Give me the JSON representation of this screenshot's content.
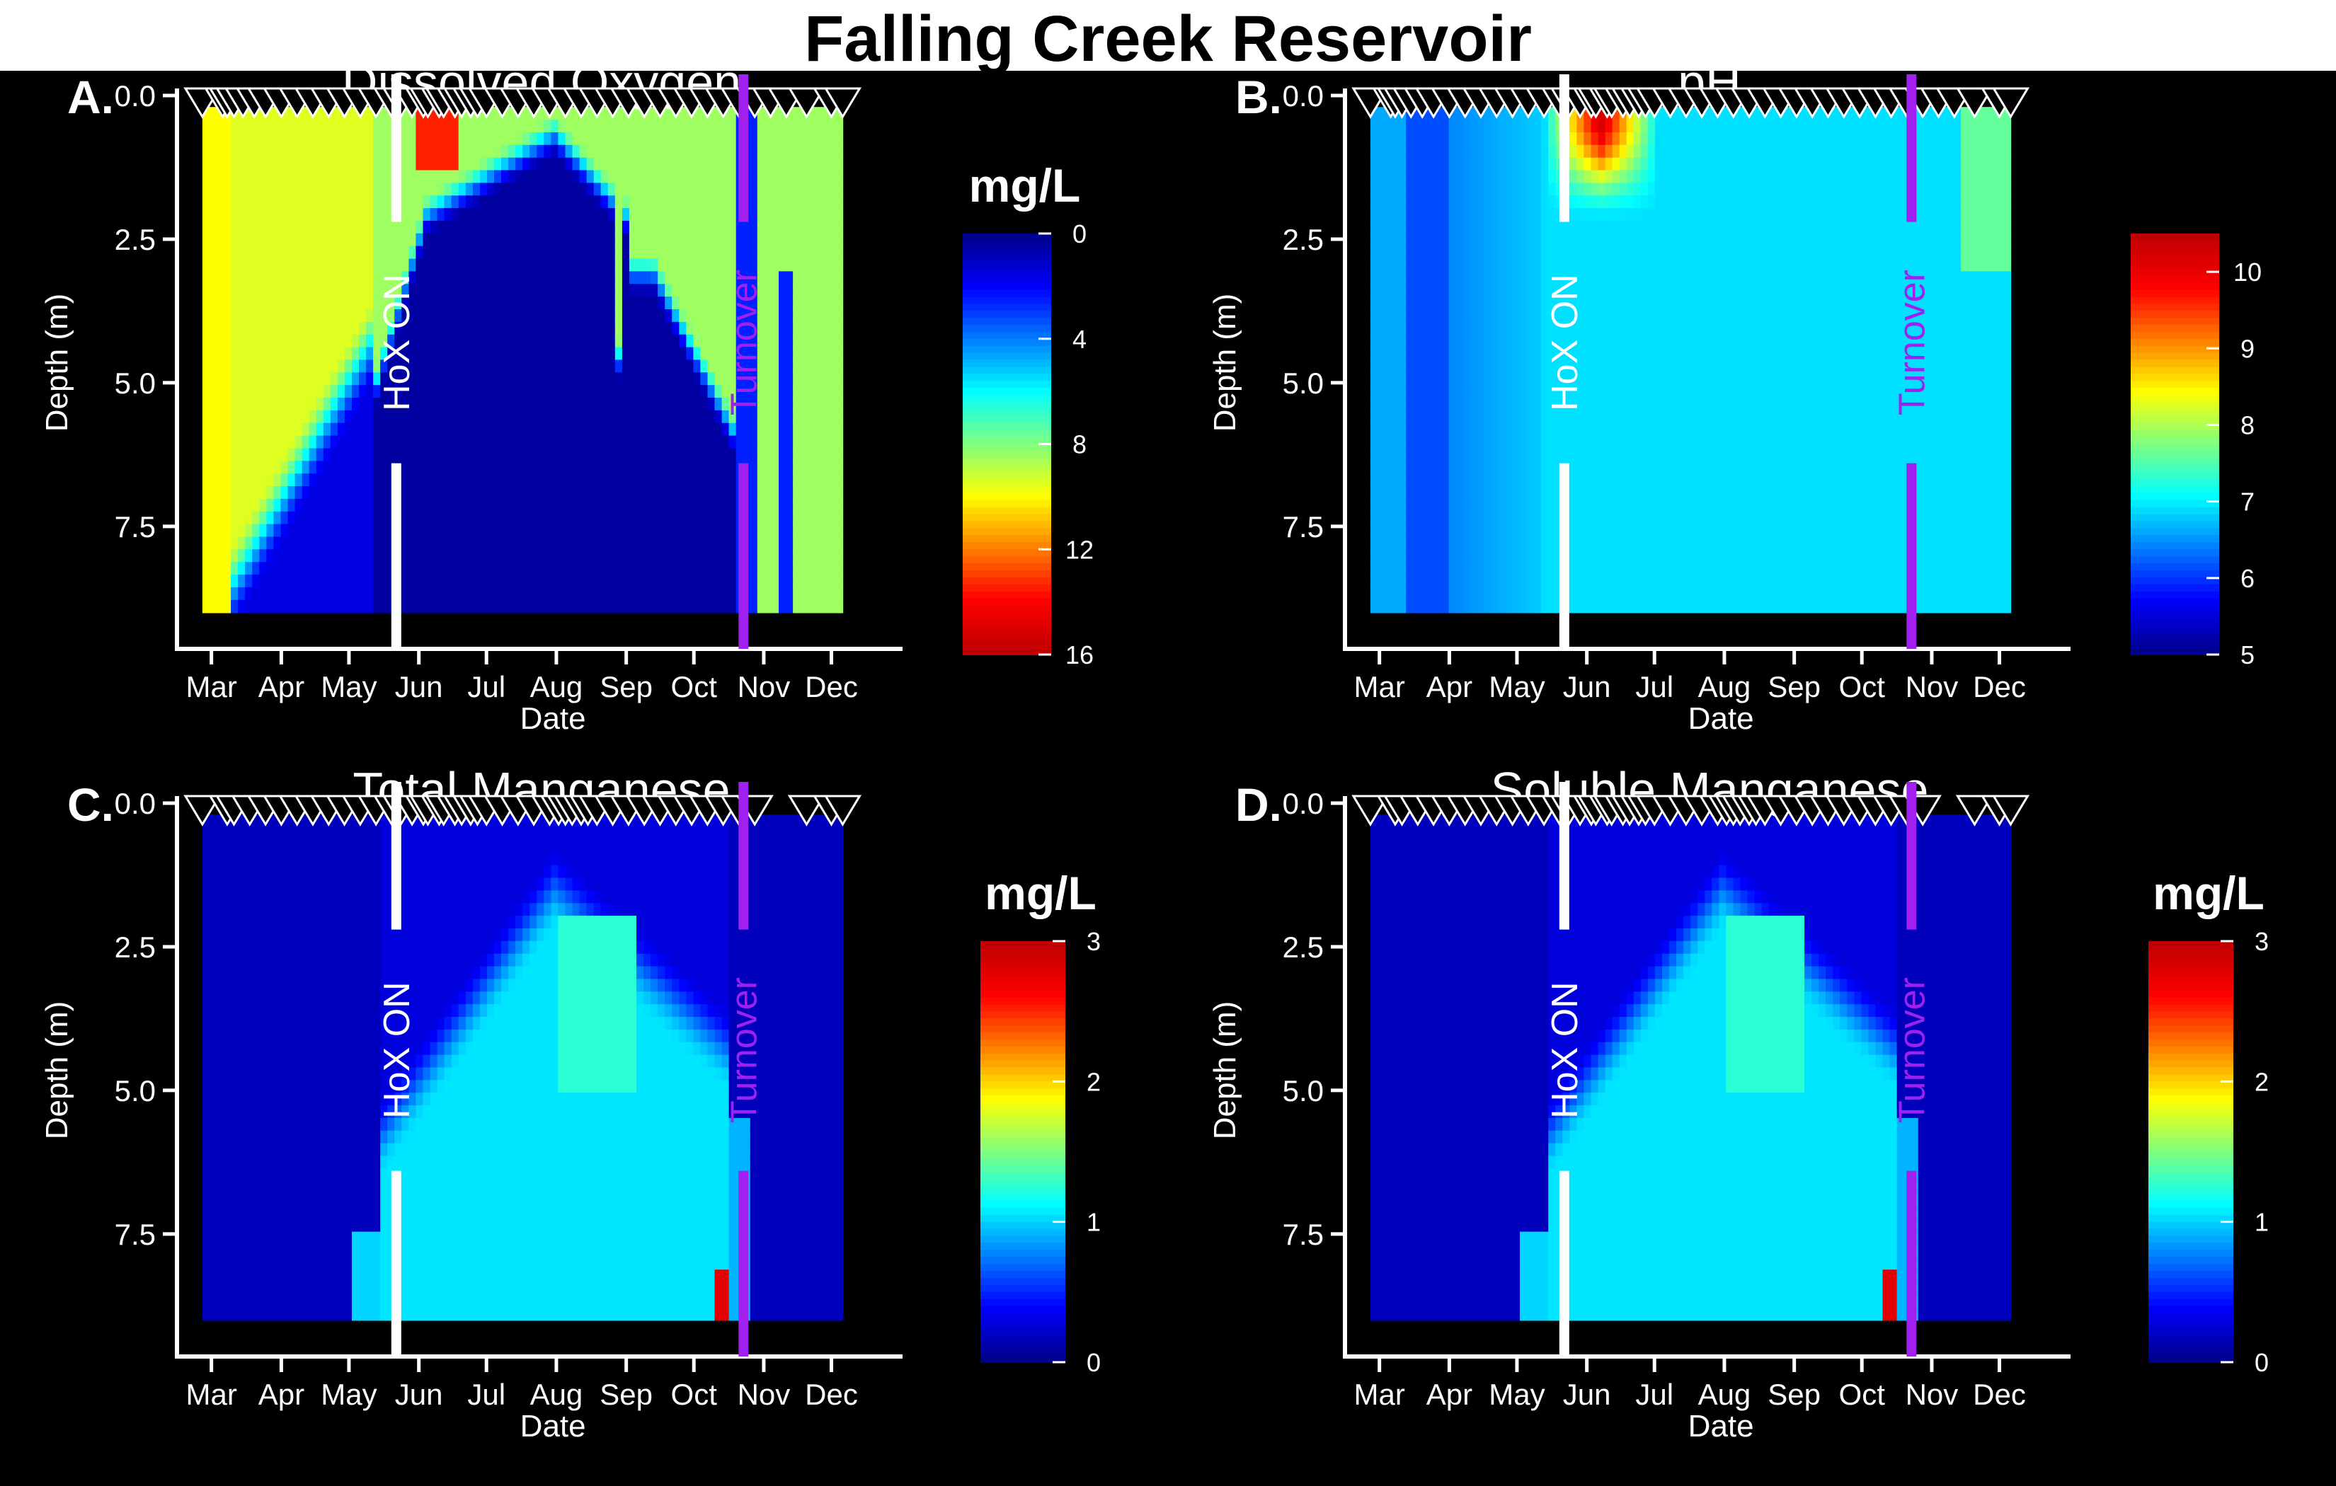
{
  "figure": {
    "title": "Falling Creek Reservoir"
  },
  "colors": {
    "colormap": [
      "#00008f",
      "#0000ff",
      "#0080ff",
      "#00ffff",
      "#80ff80",
      "#ffff00",
      "#ff8000",
      "#ff0000",
      "#c00000"
    ],
    "hox_line": "#ffffff",
    "turnover_line": "#a020f0",
    "background": "#000000",
    "axes": "#ffffff"
  },
  "chart_data": [
    {
      "type": "heatmap",
      "panel_label": "A.",
      "title": "Dissolved Oxygen",
      "units": "mg/L",
      "xlabel": "Date",
      "ylabel": "Depth (m)",
      "x_ticks": [
        "Mar",
        "Apr",
        "May",
        "Jun",
        "Jul",
        "Aug",
        "Sep",
        "Oct",
        "Nov",
        "Dec"
      ],
      "y_ticks": [
        "0.0",
        "2.5",
        "5.0",
        "7.5"
      ],
      "y_range": [
        0,
        9.3
      ],
      "y_reversed": true,
      "colorbar_ticks": [
        "0",
        "4",
        "8",
        "12",
        "16"
      ],
      "colorbar_range": [
        0,
        16
      ],
      "colorbar_reversed": true,
      "sampling_dates": [
        "2019-02-25",
        "2019-03-06",
        "2019-03-08",
        "2019-03-11",
        "2019-03-15",
        "2019-03-20",
        "2019-03-25",
        "2019-04-01",
        "2019-04-08",
        "2019-04-15",
        "2019-04-22",
        "2019-04-29",
        "2019-05-06",
        "2019-05-13",
        "2019-05-20",
        "2019-05-24",
        "2019-05-29",
        "2019-06-03",
        "2019-06-05",
        "2019-06-10",
        "2019-06-12",
        "2019-06-17",
        "2019-06-20",
        "2019-06-24",
        "2019-06-27",
        "2019-07-01",
        "2019-07-08",
        "2019-07-15",
        "2019-07-22",
        "2019-07-29",
        "2019-08-05",
        "2019-08-12",
        "2019-08-19",
        "2019-08-26",
        "2019-09-02",
        "2019-09-09",
        "2019-09-16",
        "2019-09-23",
        "2019-09-30",
        "2019-10-07",
        "2019-10-14",
        "2019-10-21",
        "2019-10-28",
        "2019-11-04",
        "2019-11-11",
        "2019-11-20",
        "2019-12-01",
        "2019-12-06"
      ],
      "events": [
        {
          "label": "HoX ON",
          "date": "2019-05-22",
          "color": "#ffffff"
        },
        {
          "label": "Turnover",
          "date": "2019-10-23",
          "color": "#a020f0"
        }
      ]
    },
    {
      "type": "heatmap",
      "panel_label": "B.",
      "title": "pH",
      "units": "",
      "xlabel": "Date",
      "ylabel": "Depth (m)",
      "x_ticks": [
        "Mar",
        "Apr",
        "May",
        "Jun",
        "Jul",
        "Aug",
        "Sep",
        "Oct",
        "Nov",
        "Dec"
      ],
      "y_ticks": [
        "0.0",
        "2.5",
        "5.0",
        "7.5"
      ],
      "y_range": [
        0,
        9.3
      ],
      "y_reversed": true,
      "colorbar_ticks": [
        "5",
        "6",
        "7",
        "8",
        "9",
        "10"
      ],
      "colorbar_range": [
        5,
        10.5
      ],
      "colorbar_reversed": false,
      "sampling_dates": [
        "2019-02-25",
        "2019-03-06",
        "2019-03-08",
        "2019-03-11",
        "2019-03-15",
        "2019-03-20",
        "2019-03-25",
        "2019-04-01",
        "2019-04-08",
        "2019-04-15",
        "2019-04-22",
        "2019-04-29",
        "2019-05-06",
        "2019-05-13",
        "2019-05-20",
        "2019-05-24",
        "2019-05-29",
        "2019-06-03",
        "2019-06-05",
        "2019-06-10",
        "2019-06-12",
        "2019-06-17",
        "2019-06-20",
        "2019-06-24",
        "2019-06-27",
        "2019-07-01",
        "2019-07-08",
        "2019-07-15",
        "2019-07-22",
        "2019-07-29",
        "2019-08-05",
        "2019-08-12",
        "2019-08-19",
        "2019-08-26",
        "2019-09-02",
        "2019-09-09",
        "2019-09-16",
        "2019-09-23",
        "2019-09-30",
        "2019-10-07",
        "2019-10-14",
        "2019-10-21",
        "2019-10-28",
        "2019-11-04",
        "2019-11-11",
        "2019-11-20",
        "2019-12-01",
        "2019-12-06"
      ],
      "events": [
        {
          "label": "HoX ON",
          "date": "2019-05-22",
          "color": "#ffffff"
        },
        {
          "label": "Turnover",
          "date": "2019-10-23",
          "color": "#a020f0"
        }
      ]
    },
    {
      "type": "heatmap",
      "panel_label": "C.",
      "title": "Total Manganese",
      "units": "mg/L",
      "xlabel": "Date",
      "ylabel": "Depth (m)",
      "x_ticks": [
        "Mar",
        "Apr",
        "May",
        "Jun",
        "Jul",
        "Aug",
        "Sep",
        "Oct",
        "Nov",
        "Dec"
      ],
      "y_ticks": [
        "0.0",
        "2.5",
        "5.0",
        "7.5"
      ],
      "y_range": [
        0,
        9.3
      ],
      "y_reversed": true,
      "colorbar_ticks": [
        "0",
        "1",
        "2",
        "3"
      ],
      "colorbar_range": [
        0,
        3
      ],
      "colorbar_reversed": false,
      "sampling_dates": [
        "2019-02-25",
        "2019-03-08",
        "2019-03-11",
        "2019-03-18",
        "2019-03-25",
        "2019-04-01",
        "2019-04-08",
        "2019-04-15",
        "2019-04-22",
        "2019-04-29",
        "2019-05-06",
        "2019-05-13",
        "2019-05-20",
        "2019-05-24",
        "2019-05-29",
        "2019-06-03",
        "2019-06-05",
        "2019-06-10",
        "2019-06-12",
        "2019-06-17",
        "2019-06-20",
        "2019-06-24",
        "2019-06-27",
        "2019-07-01",
        "2019-07-08",
        "2019-07-15",
        "2019-07-22",
        "2019-07-29",
        "2019-08-02",
        "2019-08-05",
        "2019-08-08",
        "2019-08-12",
        "2019-08-15",
        "2019-08-19",
        "2019-08-26",
        "2019-09-02",
        "2019-09-09",
        "2019-09-16",
        "2019-09-23",
        "2019-09-30",
        "2019-10-07",
        "2019-10-14",
        "2019-10-21",
        "2019-10-28",
        "2019-11-20",
        "2019-12-01",
        "2019-12-06"
      ],
      "events": [
        {
          "label": "HoX ON",
          "date": "2019-05-22",
          "color": "#ffffff"
        },
        {
          "label": "Turnover",
          "date": "2019-10-23",
          "color": "#a020f0"
        }
      ]
    },
    {
      "type": "heatmap",
      "panel_label": "D.",
      "title": "Soluble Manganese",
      "units": "mg/L",
      "xlabel": "Date",
      "ylabel": "Depth (m)",
      "x_ticks": [
        "Mar",
        "Apr",
        "May",
        "Jun",
        "Jul",
        "Aug",
        "Sep",
        "Oct",
        "Nov",
        "Dec"
      ],
      "y_ticks": [
        "0.0",
        "2.5",
        "5.0",
        "7.5"
      ],
      "y_range": [
        0,
        9.3
      ],
      "y_reversed": true,
      "colorbar_ticks": [
        "0",
        "1",
        "2",
        "3"
      ],
      "colorbar_range": [
        0,
        3
      ],
      "colorbar_reversed": false,
      "sampling_dates": [
        "2019-02-25",
        "2019-03-08",
        "2019-03-11",
        "2019-03-18",
        "2019-03-25",
        "2019-04-01",
        "2019-04-08",
        "2019-04-15",
        "2019-04-22",
        "2019-04-29",
        "2019-05-06",
        "2019-05-13",
        "2019-05-20",
        "2019-05-24",
        "2019-05-29",
        "2019-06-03",
        "2019-06-05",
        "2019-06-10",
        "2019-06-12",
        "2019-06-17",
        "2019-06-20",
        "2019-06-24",
        "2019-06-27",
        "2019-07-01",
        "2019-07-08",
        "2019-07-15",
        "2019-07-22",
        "2019-07-29",
        "2019-08-02",
        "2019-08-05",
        "2019-08-08",
        "2019-08-12",
        "2019-08-15",
        "2019-08-19",
        "2019-08-26",
        "2019-09-02",
        "2019-09-09",
        "2019-09-16",
        "2019-09-23",
        "2019-09-30",
        "2019-10-07",
        "2019-10-14",
        "2019-10-21",
        "2019-10-28",
        "2019-11-20",
        "2019-12-01",
        "2019-12-06"
      ],
      "events": [
        {
          "label": "HoX ON",
          "date": "2019-05-22",
          "color": "#ffffff"
        },
        {
          "label": "Turnover",
          "date": "2019-10-23",
          "color": "#a020f0"
        }
      ]
    }
  ]
}
